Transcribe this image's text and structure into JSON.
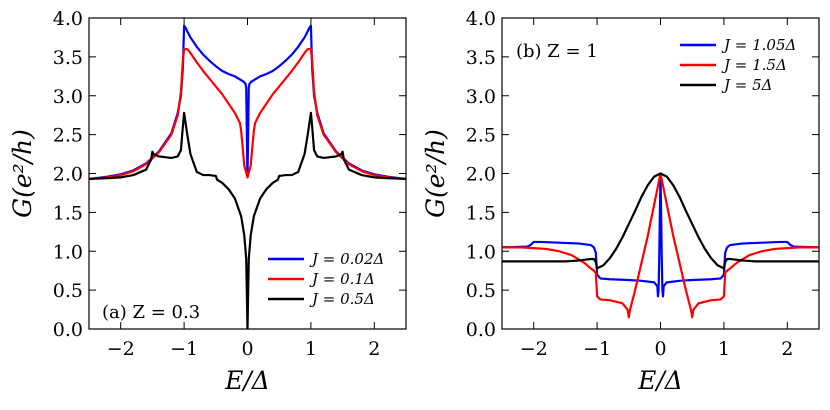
{
  "chart_data": [
    {
      "type": "line",
      "panel": "(a)",
      "title": "(a) Z = 0.3",
      "xlabel": "E/Δ",
      "ylabel": "G(e²/h)",
      "xlim": [
        -2.5,
        2.5
      ],
      "ylim": [
        0,
        4.0
      ],
      "xticks": [
        -2,
        -1,
        0,
        1,
        2
      ],
      "xtick_labels": [
        "−2",
        "−1",
        "0",
        "1",
        "2"
      ],
      "yticks": [
        0,
        0.5,
        1.0,
        1.5,
        2.0,
        2.5,
        3.0,
        3.5,
        4.0
      ],
      "ytick_labels": [
        "0.0",
        "0.5",
        "1.0",
        "1.5",
        "2.0",
        "2.5",
        "3.0",
        "3.5",
        "4.0"
      ],
      "legend_position": "lower-right",
      "series": [
        {
          "name": "J = 0.02Δ",
          "color": "#0000ff",
          "x": [
            0,
            0.01,
            0.02,
            0.03,
            0.06,
            0.1,
            0.2,
            0.3,
            0.4,
            0.5,
            0.6,
            0.7,
            0.8,
            0.9,
            0.95,
            0.98,
            1.0,
            1.02,
            1.05,
            1.1,
            1.2,
            1.4,
            1.6,
            1.8,
            2.0,
            2.2,
            2.5
          ],
          "values": [
            1.95,
            2.5,
            3.1,
            3.15,
            3.18,
            3.2,
            3.25,
            3.28,
            3.32,
            3.38,
            3.45,
            3.53,
            3.63,
            3.75,
            3.83,
            3.88,
            3.9,
            3.35,
            3.0,
            2.78,
            2.52,
            2.28,
            2.13,
            2.04,
            1.99,
            1.96,
            1.93
          ]
        },
        {
          "name": "J = 0.1Δ",
          "color": "#ff0000",
          "x": [
            0,
            0.05,
            0.1,
            0.12,
            0.15,
            0.2,
            0.3,
            0.4,
            0.5,
            0.6,
            0.7,
            0.8,
            0.9,
            0.95,
            1.0,
            1.02,
            1.05,
            1.1,
            1.2,
            1.4,
            1.6,
            1.8,
            2.0,
            2.2,
            2.5
          ],
          "values": [
            1.95,
            2.1,
            2.55,
            2.65,
            2.7,
            2.78,
            2.9,
            3.02,
            3.12,
            3.22,
            3.32,
            3.43,
            3.55,
            3.6,
            3.6,
            3.45,
            3.05,
            2.75,
            2.5,
            2.27,
            2.12,
            2.03,
            1.98,
            1.95,
            1.93
          ]
        },
        {
          "name": "J = 0.5Δ",
          "color": "#000000",
          "x": [
            0,
            0.02,
            0.05,
            0.1,
            0.2,
            0.3,
            0.4,
            0.48,
            0.5,
            0.52,
            0.6,
            0.7,
            0.8,
            0.9,
            0.95,
            1.0,
            1.02,
            1.05,
            1.1,
            1.2,
            1.3,
            1.4,
            1.48,
            1.5,
            1.52,
            1.6,
            1.8,
            2.0,
            2.2,
            2.5
          ],
          "values": [
            0,
            0.9,
            1.2,
            1.45,
            1.68,
            1.8,
            1.88,
            1.92,
            1.97,
            1.97,
            1.98,
            1.98,
            2.02,
            2.25,
            2.5,
            2.78,
            2.6,
            2.3,
            2.22,
            2.2,
            2.21,
            2.22,
            2.25,
            2.28,
            2.18,
            2.05,
            1.98,
            1.95,
            1.94,
            1.93
          ]
        }
      ]
    },
    {
      "type": "line",
      "panel": "(b)",
      "title": "(b) Z = 1",
      "xlabel": "E/Δ",
      "ylabel": "G(e²/h)",
      "xlim": [
        -2.5,
        2.5
      ],
      "ylim": [
        0,
        4.0
      ],
      "xticks": [
        -2,
        -1,
        0,
        1,
        2
      ],
      "xtick_labels": [
        "−2",
        "−1",
        "0",
        "1",
        "2"
      ],
      "yticks": [
        0,
        0.5,
        1.0,
        1.5,
        2.0,
        2.5,
        3.0,
        3.5,
        4.0
      ],
      "ytick_labels": [
        "0.0",
        "0.5",
        "1.0",
        "1.5",
        "2.0",
        "2.5",
        "3.0",
        "3.5",
        "4.0"
      ],
      "legend_position": "upper-right",
      "series": [
        {
          "name": "J = 1.05Δ",
          "color": "#0000ff",
          "x": [
            0,
            0.01,
            0.02,
            0.03,
            0.04,
            0.05,
            0.1,
            0.3,
            0.5,
            0.8,
            0.95,
            1.0,
            1.02,
            1.05,
            1.1,
            1.3,
            1.6,
            1.9,
            2.0,
            2.05,
            2.1,
            2.5
          ],
          "values": [
            2.0,
            1.5,
            0.9,
            0.5,
            0.42,
            0.55,
            0.6,
            0.62,
            0.63,
            0.64,
            0.65,
            0.7,
            0.98,
            1.05,
            1.08,
            1.1,
            1.11,
            1.12,
            1.12,
            1.08,
            1.06,
            1.05
          ]
        },
        {
          "name": "J = 1.5Δ",
          "color": "#ff0000",
          "x": [
            0,
            0.05,
            0.1,
            0.2,
            0.3,
            0.4,
            0.48,
            0.5,
            0.52,
            0.6,
            0.8,
            0.95,
            1.0,
            1.02,
            1.05,
            1.1,
            1.2,
            1.4,
            1.6,
            1.8,
            2.0,
            2.2,
            2.5
          ],
          "values": [
            2.0,
            1.8,
            1.6,
            1.2,
            0.85,
            0.5,
            0.25,
            0.15,
            0.25,
            0.33,
            0.37,
            0.38,
            0.42,
            0.72,
            0.75,
            0.78,
            0.85,
            0.95,
            1.0,
            1.03,
            1.04,
            1.05,
            1.05
          ]
        },
        {
          "name": "J = 5Δ",
          "color": "#000000",
          "x": [
            0,
            0.1,
            0.2,
            0.3,
            0.4,
            0.5,
            0.6,
            0.7,
            0.8,
            0.9,
            1.0,
            1.02,
            1.05,
            1.1,
            1.3,
            1.5,
            2.0,
            2.5
          ],
          "values": [
            2.0,
            1.96,
            1.85,
            1.7,
            1.52,
            1.35,
            1.18,
            1.03,
            0.91,
            0.82,
            0.78,
            0.86,
            0.9,
            0.9,
            0.88,
            0.87,
            0.87,
            0.87
          ]
        }
      ]
    }
  ]
}
